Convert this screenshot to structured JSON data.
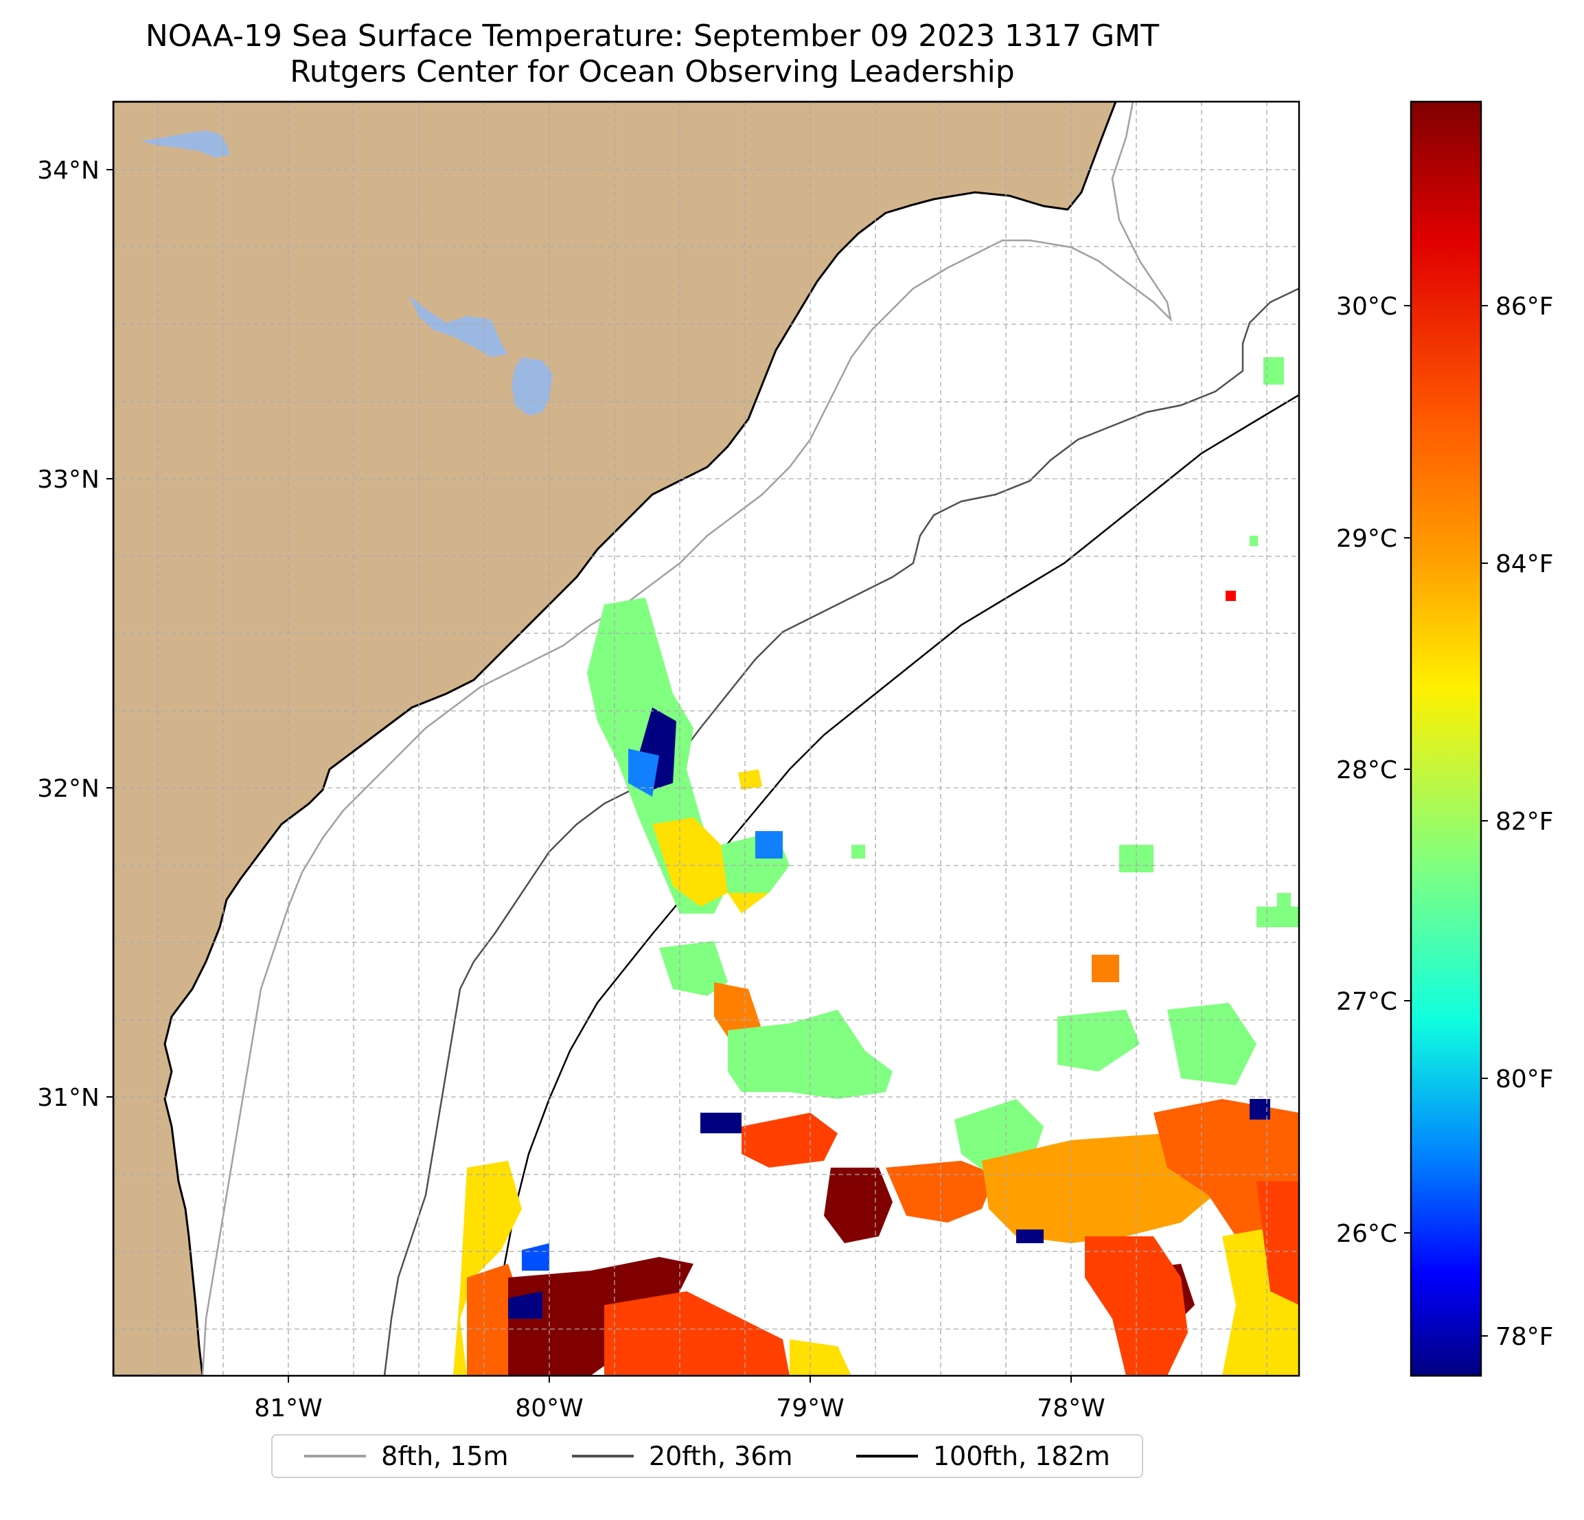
{
  "title": {
    "line1": "NOAA-19 Sea Surface Temperature: September 09 2023 1317 GMT",
    "line2": "Rutgers Center for Ocean Observing Leadership"
  },
  "map": {
    "lat_labels": [
      "34°N",
      "33°N",
      "32°N",
      "31°N"
    ],
    "lon_labels": [
      "81°W",
      "80°W",
      "79°W",
      "78°W"
    ],
    "land_color": "#d2b48c",
    "lake_color": "#9bb8e3",
    "isobaths": [
      {
        "depth": "8fth, 15m",
        "color": "#a0a0a0"
      },
      {
        "depth": "20fth, 36m",
        "color": "#505050"
      },
      {
        "depth": "100fth, 182m",
        "color": "#000000"
      }
    ]
  },
  "colorbar": {
    "celsius_labels": [
      "30°C",
      "29°C",
      "28°C",
      "27°C",
      "26°C"
    ],
    "fahrenheit_labels": [
      "86°F",
      "84°F",
      "82°F",
      "80°F",
      "78°F"
    ],
    "colormap": "jet",
    "gradient_stops": [
      "#800000",
      "#ff0000",
      "#ff8000",
      "#ffff00",
      "#80ff80",
      "#00ffff",
      "#0080ff",
      "#0000ff",
      "#000080"
    ]
  },
  "legend": {
    "items": [
      {
        "label": "8fth, 15m",
        "color": "#a0a0a0"
      },
      {
        "label": "20fth, 36m",
        "color": "#505050"
      },
      {
        "label": "100fth, 182m",
        "color": "#000000"
      }
    ]
  }
}
